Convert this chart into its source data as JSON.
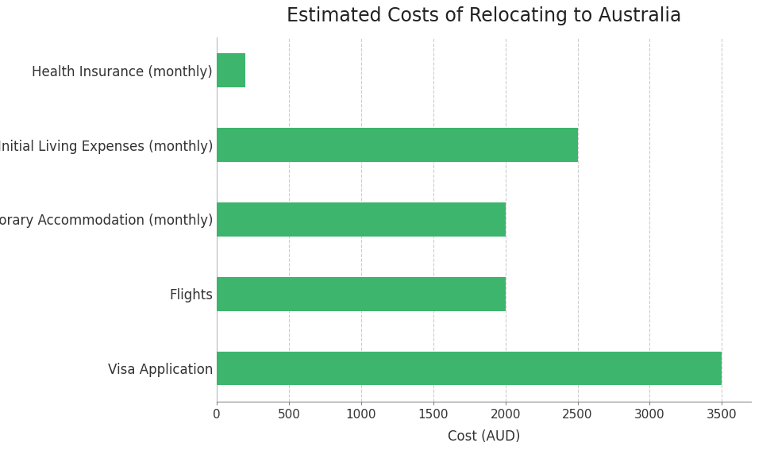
{
  "title": "Estimated Costs of Relocating to Australia",
  "categories": [
    "Visa Application",
    "Flights",
    "Temporary Accommodation (monthly)",
    "Initial Living Expenses (monthly)",
    "Health Insurance (monthly)"
  ],
  "values": [
    3500,
    2000,
    2000,
    2500,
    200
  ],
  "bar_color": "#3db56c",
  "xlabel": "Cost (AUD)",
  "xlim": [
    0,
    3700
  ],
  "xticks": [
    0,
    500,
    1000,
    1500,
    2000,
    2500,
    3000,
    3500
  ],
  "background_color": "#ffffff",
  "title_fontsize": 17,
  "label_fontsize": 12,
  "tick_fontsize": 11,
  "bar_height": 0.45
}
